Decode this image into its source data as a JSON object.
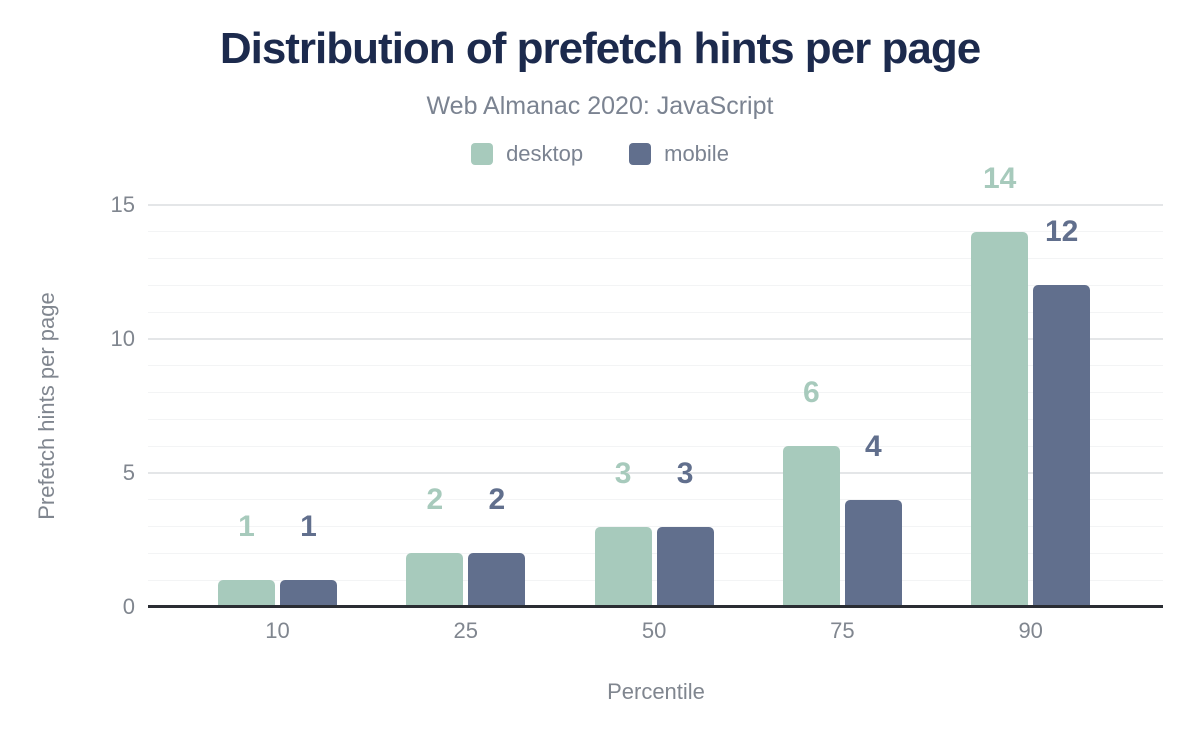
{
  "chart_data": {
    "type": "bar",
    "title": "Distribution of prefetch hints per page",
    "subtitle": "Web Almanac 2020: JavaScript",
    "xlabel": "Percentile",
    "ylabel": "Prefetch hints per page",
    "categories": [
      "10",
      "25",
      "50",
      "75",
      "90"
    ],
    "series": [
      {
        "name": "desktop",
        "color": "#a7cabc",
        "values": [
          1,
          2,
          3,
          6,
          14
        ]
      },
      {
        "name": "mobile",
        "color": "#616f8d",
        "values": [
          1,
          2,
          3,
          4,
          12
        ]
      }
    ],
    "y_ticks": [
      0,
      5,
      10,
      15
    ],
    "ylim": [
      0,
      15
    ],
    "grid": "horizontal; minor line every 1 unit, major line every 5 units",
    "legend_position": "top-center",
    "value_labels": true
  },
  "colors": {
    "background": "#ffffff",
    "title": "#1c2a4d",
    "subtitle_gray": "#7b8391",
    "tick_gray": "#80868f",
    "grid_major": "#e4e6e8",
    "grid_minor": "#f3f4f5",
    "axis_line": "#2a2d33"
  }
}
